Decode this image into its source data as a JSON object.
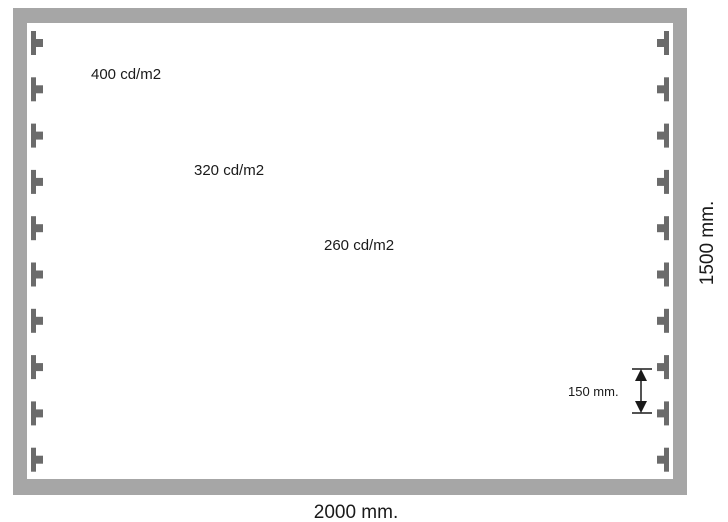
{
  "luminance_labels": [
    {
      "text": "400 cd/m2"
    },
    {
      "text": "320 cd/m2"
    },
    {
      "text": "260 cd/m2"
    }
  ],
  "dimensions": {
    "width_label": "2000 mm.",
    "height_label": "1500 mm.",
    "spacing_label": "150 mm."
  },
  "colors": {
    "frame": "#a6a6a6",
    "led": "#6b6b6b",
    "text": "#1a1a1a"
  }
}
